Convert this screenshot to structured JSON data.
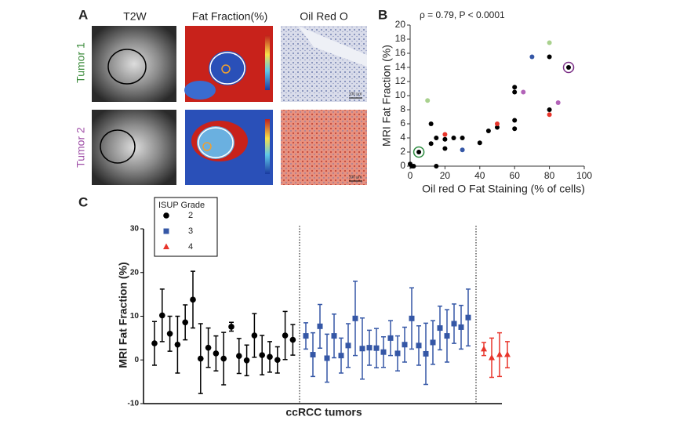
{
  "panels": {
    "labels": [
      "A",
      "B",
      "C"
    ],
    "columns": [
      "T2W",
      "Fat Fraction(%)",
      "Oil Red O"
    ],
    "rows": [
      "Tumor 1",
      "Tumor 2"
    ],
    "scale_bar": "100 µm"
  },
  "chart_data": [
    {
      "type": "scatter",
      "annotation": "ρ = 0.79, P < 0.0001",
      "xlabel": "Oil red O Fat Staining (% of cells)",
      "ylabel": "MRI Fat Fraction (%)",
      "x": [
        0,
        1,
        2,
        12,
        12,
        15,
        15,
        20,
        20,
        25,
        30,
        40,
        45,
        50,
        60,
        60,
        60,
        60,
        80,
        80,
        5,
        91,
        10,
        80,
        30,
        70,
        20,
        50,
        80,
        65,
        85
      ],
      "values": [
        0.3,
        0,
        0,
        6,
        3.2,
        0,
        4,
        2.5,
        3.8,
        4,
        4,
        3.3,
        5,
        5.5,
        11.2,
        10.5,
        6.5,
        5.3,
        15.5,
        8,
        2,
        14,
        9.3,
        17.5,
        2.3,
        15.5,
        4.5,
        6,
        7.3,
        10.5,
        9
      ],
      "colors": [
        "#000000",
        "#000000",
        "#000000",
        "#000000",
        "#000000",
        "#000000",
        "#000000",
        "#000000",
        "#000000",
        "#000000",
        "#000000",
        "#000000",
        "#000000",
        "#000000",
        "#000000",
        "#000000",
        "#000000",
        "#000000",
        "#000000",
        "#000000",
        "#000000",
        "#000000",
        "#a9d18e",
        "#a9d18e",
        "#3557a6",
        "#3557a6",
        "#e8352b",
        "#e8352b",
        "#e8352b",
        "#b263b8",
        "#b263b8"
      ],
      "highlight": [
        {
          "index": 20,
          "color": "#2b8a3e"
        },
        {
          "index": 21,
          "color": "#7b2f86"
        }
      ],
      "xlim": [
        0,
        100
      ],
      "xticks": [
        0,
        20,
        40,
        60,
        80,
        100
      ],
      "ylim": [
        0,
        20
      ],
      "yticks": [
        0,
        2,
        4,
        6,
        8,
        10,
        12,
        14,
        16,
        18,
        20
      ]
    },
    {
      "type": "errorbar",
      "xlabel": "ccRCC tumors",
      "ylabel": "MRI Fat Fraction (%)",
      "legend_title": "ISUP Grade",
      "ylim": [
        -10,
        30
      ],
      "yticks": [
        -10,
        0,
        10,
        20,
        30
      ],
      "series": [
        {
          "name": "2",
          "color": "#000000",
          "marker": "circle",
          "values": [
            3.8,
            10.2,
            6,
            3.5,
            8.6,
            13.8,
            0.3,
            2.8,
            1.5,
            0.3,
            7.6,
            0.9,
            -0.1,
            5.6,
            1.1,
            0.7,
            0,
            5.6,
            4.6
          ],
          "errors": [
            5,
            6,
            4,
            6.5,
            4,
            6.5,
            8,
            4.5,
            4,
            6,
            1,
            4,
            3.5,
            5,
            4.5,
            3.5,
            3,
            5.5,
            3.5
          ]
        },
        {
          "name": "3",
          "color": "#3557a6",
          "marker": "square",
          "values": [
            5.5,
            1.2,
            7.7,
            0.4,
            5.5,
            1,
            3.3,
            9.5,
            2.6,
            2.8,
            2.7,
            1.8,
            5,
            1.5,
            3.5,
            9.5,
            3.3,
            1.4,
            4,
            7.3,
            5.5,
            8.3,
            7.5,
            9.7
          ],
          "errors": [
            3,
            5,
            5,
            5.5,
            5,
            4,
            5,
            8.5,
            7,
            4,
            4.5,
            3.5,
            4,
            4,
            4,
            7,
            4.5,
            7,
            5,
            5,
            6,
            4.5,
            5,
            6.5
          ]
        },
        {
          "name": "4",
          "color": "#e8352b",
          "marker": "triangle",
          "values": [
            2.5,
            0.5,
            1.2,
            1.2
          ],
          "errors": [
            1.5,
            4.5,
            5,
            3
          ]
        }
      ]
    }
  ]
}
